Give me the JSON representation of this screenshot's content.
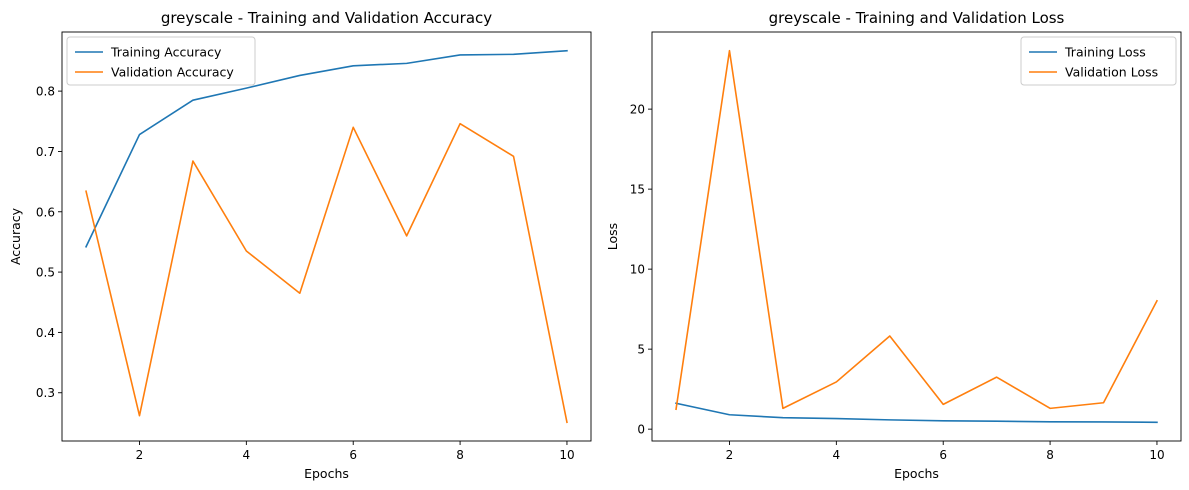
{
  "chart_data": [
    {
      "type": "line",
      "title": "greyscale - Training and Validation Accuracy",
      "xlabel": "Epochs",
      "ylabel": "Accuracy",
      "x": [
        1,
        2,
        3,
        4,
        5,
        6,
        7,
        8,
        9,
        10
      ],
      "xlim": [
        0.55,
        10.45
      ],
      "ylim": [
        0.22,
        0.898
      ],
      "xticks": [
        2,
        4,
        6,
        8,
        10
      ],
      "yticks": [
        0.3,
        0.4,
        0.5,
        0.6,
        0.7,
        0.8
      ],
      "xtick_labels": [
        "2",
        "4",
        "6",
        "8",
        "10"
      ],
      "ytick_labels": [
        "0.3",
        "0.4",
        "0.5",
        "0.6",
        "0.7",
        "0.8"
      ],
      "grid": false,
      "legend_position": "upper-left",
      "series": [
        {
          "name": "Training Accuracy",
          "color": "#1f77b4",
          "values": [
            0.542,
            0.728,
            0.785,
            0.805,
            0.826,
            0.842,
            0.846,
            0.86,
            0.861,
            0.867
          ]
        },
        {
          "name": "Validation Accuracy",
          "color": "#ff7f0e",
          "values": [
            0.634,
            0.262,
            0.684,
            0.535,
            0.465,
            0.74,
            0.56,
            0.746,
            0.692,
            0.251
          ]
        }
      ]
    },
    {
      "type": "line",
      "title": "greyscale - Training and Validation Loss",
      "xlabel": "Epochs",
      "ylabel": "Loss",
      "x": [
        1,
        2,
        3,
        4,
        5,
        6,
        7,
        8,
        9,
        10
      ],
      "xlim": [
        0.55,
        10.45
      ],
      "ylim": [
        -0.74,
        24.82
      ],
      "xticks": [
        2,
        4,
        6,
        8,
        10
      ],
      "yticks": [
        0,
        5,
        10,
        15,
        20
      ],
      "xtick_labels": [
        "2",
        "4",
        "6",
        "8",
        "10"
      ],
      "ytick_labels": [
        "0",
        "5",
        "10",
        "15",
        "20"
      ],
      "grid": false,
      "legend_position": "upper-right",
      "series": [
        {
          "name": "Training Loss",
          "color": "#1f77b4",
          "values": [
            1.62,
            0.9,
            0.72,
            0.66,
            0.58,
            0.52,
            0.5,
            0.46,
            0.45,
            0.43
          ]
        },
        {
          "name": "Validation Loss",
          "color": "#ff7f0e",
          "values": [
            1.25,
            23.65,
            1.3,
            2.95,
            5.82,
            1.55,
            3.25,
            1.3,
            1.65,
            8.02
          ]
        }
      ]
    }
  ]
}
